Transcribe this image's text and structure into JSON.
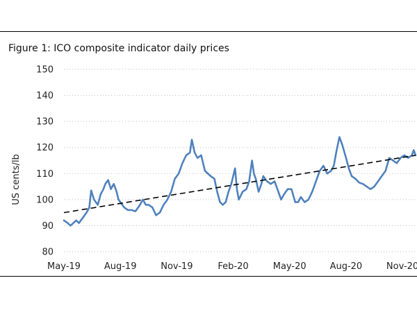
{
  "chart_data": {
    "type": "line",
    "title": "Figure 1: ICO composite indicator daily prices",
    "xlabel": "",
    "ylabel": "US cents/lb",
    "ylim": [
      80,
      150
    ],
    "yticks": [
      "150",
      "140",
      "130",
      "120",
      "110",
      "100",
      "90",
      "80"
    ],
    "xticks": [
      "May-19",
      "Aug-19",
      "Nov-19",
      "Feb-20",
      "May-20",
      "Aug-20",
      "Nov-20"
    ],
    "grid": true,
    "legend": "none",
    "colors": {
      "series": "#4f81bd",
      "trend": "#000000"
    },
    "series": [
      {
        "name": "ICO composite indicator",
        "x_unit": "months since May-19",
        "points": [
          [
            0.0,
            92
          ],
          [
            0.2,
            91
          ],
          [
            0.35,
            90
          ],
          [
            0.5,
            91
          ],
          [
            0.65,
            92
          ],
          [
            0.8,
            91
          ],
          [
            1.0,
            93
          ],
          [
            1.2,
            95
          ],
          [
            1.35,
            97
          ],
          [
            1.45,
            103.5
          ],
          [
            1.6,
            100
          ],
          [
            1.8,
            98
          ],
          [
            1.95,
            102
          ],
          [
            2.1,
            104
          ],
          [
            2.2,
            106
          ],
          [
            2.35,
            107.5
          ],
          [
            2.5,
            104
          ],
          [
            2.65,
            106
          ],
          [
            2.8,
            103
          ],
          [
            2.9,
            100
          ],
          [
            3.0,
            99
          ],
          [
            3.2,
            97
          ],
          [
            3.4,
            96
          ],
          [
            3.6,
            96
          ],
          [
            3.8,
            95.5
          ],
          [
            4.0,
            97.5
          ],
          [
            4.2,
            100
          ],
          [
            4.35,
            98
          ],
          [
            4.5,
            98
          ],
          [
            4.7,
            97
          ],
          [
            4.9,
            94
          ],
          [
            5.1,
            95
          ],
          [
            5.3,
            98
          ],
          [
            5.5,
            100
          ],
          [
            5.7,
            103
          ],
          [
            5.9,
            108
          ],
          [
            6.1,
            110
          ],
          [
            6.3,
            114
          ],
          [
            6.5,
            117
          ],
          [
            6.7,
            118
          ],
          [
            6.8,
            123
          ],
          [
            6.95,
            118
          ],
          [
            7.1,
            116
          ],
          [
            7.3,
            117
          ],
          [
            7.5,
            111
          ],
          [
            7.8,
            109
          ],
          [
            8.0,
            108
          ],
          [
            8.15,
            103
          ],
          [
            8.3,
            99
          ],
          [
            8.45,
            98
          ],
          [
            8.6,
            99
          ],
          [
            8.75,
            103
          ],
          [
            8.9,
            106
          ],
          [
            9.0,
            109
          ],
          [
            9.1,
            112
          ],
          [
            9.2,
            104
          ],
          [
            9.3,
            100
          ],
          [
            9.5,
            103
          ],
          [
            9.7,
            104
          ],
          [
            9.85,
            107
          ],
          [
            10.0,
            115
          ],
          [
            10.1,
            110
          ],
          [
            10.2,
            108
          ],
          [
            10.35,
            103
          ],
          [
            10.5,
            106
          ],
          [
            10.6,
            109
          ],
          [
            10.8,
            107
          ],
          [
            11.0,
            106
          ],
          [
            11.2,
            107
          ],
          [
            11.4,
            103
          ],
          [
            11.55,
            100
          ],
          [
            11.7,
            102
          ],
          [
            11.9,
            104
          ],
          [
            12.1,
            104
          ],
          [
            12.3,
            99
          ],
          [
            12.45,
            99
          ],
          [
            12.6,
            101
          ],
          [
            12.8,
            99
          ],
          [
            13.0,
            100
          ],
          [
            13.2,
            103
          ],
          [
            13.4,
            107
          ],
          [
            13.6,
            111
          ],
          [
            13.8,
            113
          ],
          [
            14.0,
            110
          ],
          [
            14.2,
            111
          ],
          [
            14.35,
            113
          ],
          [
            14.5,
            119
          ],
          [
            14.65,
            124
          ],
          [
            14.8,
            121
          ],
          [
            15.0,
            116
          ],
          [
            15.15,
            112
          ],
          [
            15.3,
            109
          ],
          [
            15.5,
            108
          ],
          [
            15.7,
            106.5
          ],
          [
            15.9,
            106
          ],
          [
            16.1,
            105
          ],
          [
            16.3,
            104
          ],
          [
            16.5,
            105
          ],
          [
            16.7,
            107
          ],
          [
            16.9,
            109
          ],
          [
            17.1,
            111
          ],
          [
            17.3,
            116
          ],
          [
            17.5,
            115
          ],
          [
            17.7,
            114
          ],
          [
            17.9,
            116
          ],
          [
            18.1,
            117
          ],
          [
            18.3,
            116
          ],
          [
            18.5,
            117
          ],
          [
            18.6,
            119
          ],
          [
            18.7,
            117
          ]
        ]
      },
      {
        "name": "Linear trend",
        "x_unit": "months since May-19",
        "points": [
          [
            0,
            95
          ],
          [
            18.7,
            117
          ]
        ]
      }
    ]
  }
}
